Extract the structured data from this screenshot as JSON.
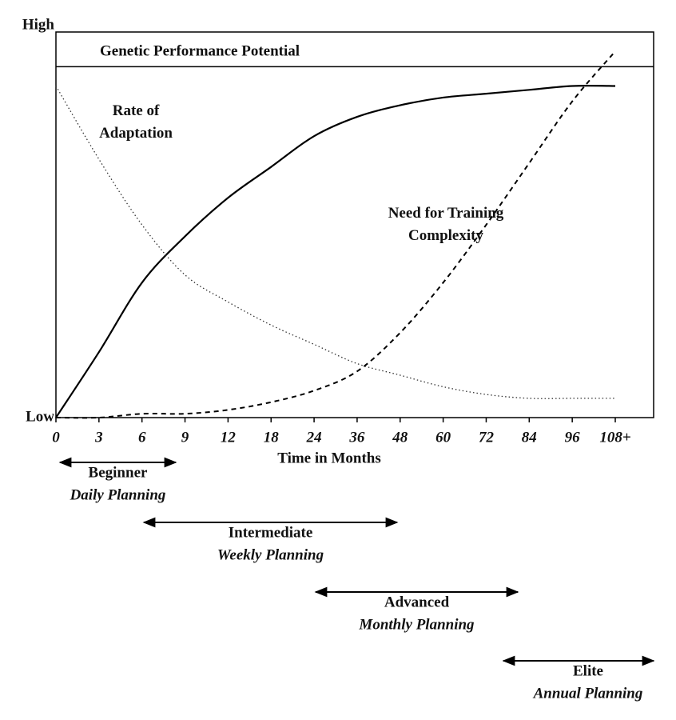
{
  "chart_data": {
    "type": "line",
    "x_label": "Time in Months",
    "categories": [
      "0",
      "3",
      "6",
      "9",
      "12",
      "18",
      "24",
      "36",
      "48",
      "60",
      "72",
      "84",
      "96",
      "108+"
    ],
    "ylim": [
      0,
      100
    ],
    "yticks": [
      {
        "value": 0,
        "label": "Low"
      },
      {
        "value": 100,
        "label": "High"
      }
    ],
    "reference_line": {
      "label": "Genetic Performance Potential",
      "value": 91
    },
    "series": [
      {
        "style": "solid",
        "color": "#000000",
        "values": [
          0,
          17,
          35,
          47,
          57,
          65,
          73,
          78,
          81,
          83,
          84,
          85,
          86,
          86
        ]
      },
      {
        "name": "Rate of Adaptation",
        "style": "dotted",
        "color": "#333333",
        "values": [
          86,
          67,
          50,
          37,
          30,
          24,
          19,
          14,
          11,
          8,
          6,
          5,
          5,
          5
        ]
      },
      {
        "name": "Need for Training Complexity",
        "style": "dashed",
        "color": "#000000",
        "values": [
          0,
          0,
          1,
          1,
          2,
          4,
          7,
          12,
          22,
          35,
          50,
          66,
          82,
          95
        ]
      }
    ]
  },
  "phases": [
    {
      "name": "Beginner",
      "planning": "Daily Planning"
    },
    {
      "name": "Intermediate",
      "planning": "Weekly Planning"
    },
    {
      "name": "Advanced",
      "planning": "Monthly Planning"
    },
    {
      "name": "Elite",
      "planning": "Annual Planning"
    }
  ]
}
